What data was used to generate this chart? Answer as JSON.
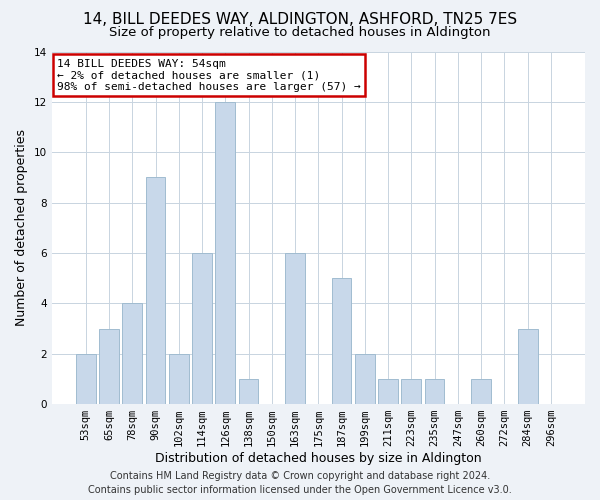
{
  "title": "14, BILL DEEDES WAY, ALDINGTON, ASHFORD, TN25 7ES",
  "subtitle": "Size of property relative to detached houses in Aldington",
  "xlabel": "Distribution of detached houses by size in Aldington",
  "ylabel": "Number of detached properties",
  "bar_labels": [
    "53sqm",
    "65sqm",
    "78sqm",
    "90sqm",
    "102sqm",
    "114sqm",
    "126sqm",
    "138sqm",
    "150sqm",
    "163sqm",
    "175sqm",
    "187sqm",
    "199sqm",
    "211sqm",
    "223sqm",
    "235sqm",
    "247sqm",
    "260sqm",
    "272sqm",
    "284sqm",
    "296sqm"
  ],
  "bar_values": [
    2,
    3,
    4,
    9,
    2,
    6,
    12,
    1,
    0,
    6,
    0,
    5,
    2,
    1,
    1,
    1,
    0,
    1,
    0,
    3,
    0
  ],
  "bar_color": "#c8d8ea",
  "bar_edge_color": "#a0bcd0",
  "annotation_line1": "14 BILL DEEDES WAY: 54sqm",
  "annotation_line2": "← 2% of detached houses are smaller (1)",
  "annotation_line3": "98% of semi-detached houses are larger (57) →",
  "annotation_box_color": "#ffffff",
  "annotation_box_edge_color": "#cc0000",
  "ylim": [
    0,
    14
  ],
  "yticks": [
    0,
    2,
    4,
    6,
    8,
    10,
    12,
    14
  ],
  "footer_line1": "Contains HM Land Registry data © Crown copyright and database right 2024.",
  "footer_line2": "Contains public sector information licensed under the Open Government Licence v3.0.",
  "background_color": "#eef2f7",
  "plot_bg_color": "#ffffff",
  "grid_color": "#c8d4e0",
  "title_fontsize": 11,
  "subtitle_fontsize": 9.5,
  "axis_label_fontsize": 9,
  "tick_fontsize": 7.5,
  "annotation_fontsize": 8,
  "footer_fontsize": 7
}
